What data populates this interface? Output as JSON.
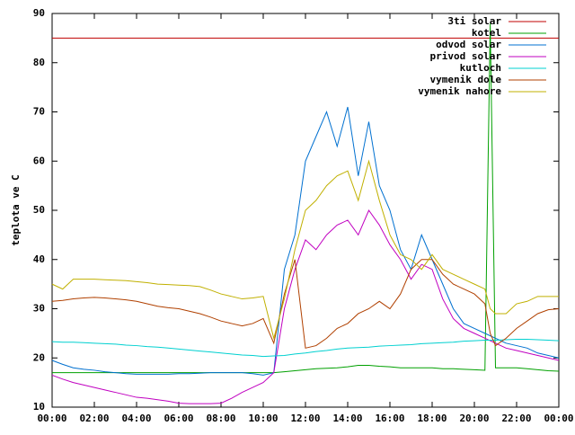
{
  "chart_data": {
    "type": "line",
    "y_label": "teplota ve C",
    "xlim": [
      0,
      24
    ],
    "ylim": [
      10,
      90
    ],
    "yticks": [
      10,
      20,
      30,
      40,
      50,
      60,
      70,
      80,
      90
    ],
    "xticks": [
      {
        "value": 0,
        "label": "00:00"
      },
      {
        "value": 2,
        "label": "02:00"
      },
      {
        "value": 4,
        "label": "04:00"
      },
      {
        "value": 6,
        "label": "06:00"
      },
      {
        "value": 8,
        "label": "08:00"
      },
      {
        "value": 10,
        "label": "10:00"
      },
      {
        "value": 12,
        "label": "12:00"
      },
      {
        "value": 14,
        "label": "14:00"
      },
      {
        "value": 16,
        "label": "16:00"
      },
      {
        "value": 18,
        "label": "18:00"
      },
      {
        "value": 20,
        "label": "20:00"
      },
      {
        "value": 22,
        "label": "22:00"
      },
      {
        "value": 24,
        "label": "00:00"
      }
    ],
    "legend": "top-right",
    "x": [
      0,
      0.5,
      1,
      1.5,
      2,
      2.5,
      3,
      3.5,
      4,
      4.5,
      5,
      5.5,
      6,
      6.5,
      7,
      7.5,
      8,
      8.5,
      9,
      9.5,
      10,
      10.5,
      11,
      11.5,
      12,
      12.5,
      13,
      13.5,
      14,
      14.5,
      15,
      15.5,
      16,
      16.5,
      17,
      17.5,
      18,
      18.5,
      19,
      19.5,
      20,
      20.5,
      20.75,
      21,
      21.5,
      22,
      22.5,
      23,
      23.5,
      24
    ],
    "series": [
      {
        "name": "3ti solar",
        "color": "#c00000",
        "values": [
          85,
          85,
          85,
          85,
          85,
          85,
          85,
          85,
          85,
          85,
          85,
          85,
          85,
          85,
          85,
          85,
          85,
          85,
          85,
          85,
          85,
          85,
          85,
          85,
          85,
          85,
          85,
          85,
          85,
          85,
          85,
          85,
          85,
          85,
          85,
          85,
          85,
          85,
          85,
          85,
          85,
          85,
          85,
          85,
          85,
          85,
          85,
          85,
          85,
          85
        ]
      },
      {
        "name": "kotel",
        "color": "#00a000",
        "values": [
          17,
          17,
          17,
          17,
          17,
          17,
          17,
          17,
          17,
          17,
          17,
          17,
          17,
          17,
          17,
          17,
          17,
          17,
          17,
          17,
          17,
          17,
          17.2,
          17.4,
          17.6,
          17.8,
          17.9,
          18,
          18.2,
          18.5,
          18.5,
          18.3,
          18.2,
          18,
          18,
          18,
          18,
          17.8,
          17.8,
          17.7,
          17.6,
          17.5,
          88,
          18,
          18,
          18,
          17.8,
          17.6,
          17.4,
          17.3
        ]
      },
      {
        "name": "odvod solar",
        "color": "#0070d0",
        "values": [
          19.5,
          18.7,
          18,
          17.7,
          17.5,
          17.2,
          17,
          16.8,
          16.7,
          16.7,
          16.7,
          16.7,
          16.8,
          16.8,
          16.9,
          17,
          17,
          17,
          17,
          16.8,
          16.5,
          17,
          38,
          45,
          60,
          65,
          70,
          63,
          71,
          57,
          68,
          55,
          50,
          42,
          38,
          45,
          40,
          35,
          30,
          27,
          26,
          25,
          24.5,
          24,
          23,
          22.5,
          22,
          21,
          20.5,
          20
        ]
      },
      {
        "name": "privod solar",
        "color": "#c000c0",
        "values": [
          16.5,
          15.7,
          15,
          14.5,
          14,
          13.5,
          13,
          12.5,
          12,
          11.8,
          11.5,
          11.2,
          10.8,
          10.7,
          10.7,
          10.7,
          10.8,
          11.8,
          13,
          14,
          15,
          17,
          30,
          38,
          44,
          42,
          45,
          47,
          48,
          45,
          50,
          47,
          43,
          40,
          36,
          39,
          38,
          32,
          28,
          26,
          25,
          24,
          23.5,
          23,
          22,
          21.5,
          21,
          20.5,
          20,
          19.5
        ]
      },
      {
        "name": "kutloch",
        "color": "#00d0d0",
        "values": [
          23.3,
          23.2,
          23.2,
          23.1,
          23,
          22.9,
          22.8,
          22.6,
          22.5,
          22.3,
          22.2,
          22,
          21.8,
          21.6,
          21.4,
          21.2,
          21,
          20.8,
          20.6,
          20.5,
          20.3,
          20.4,
          20.5,
          20.8,
          21,
          21.3,
          21.5,
          21.8,
          22,
          22.1,
          22.2,
          22.4,
          22.5,
          22.6,
          22.7,
          22.9,
          23,
          23.1,
          23.2,
          23.4,
          23.5,
          23.6,
          23.6,
          23.6,
          23.7,
          23.8,
          23.8,
          23.7,
          23.6,
          23.5
        ]
      },
      {
        "name": "vymenik dole",
        "color": "#b04000",
        "values": [
          31.5,
          31.7,
          32,
          32.2,
          32.3,
          32.2,
          32,
          31.8,
          31.5,
          31,
          30.5,
          30.2,
          30,
          29.5,
          29,
          28.3,
          27.5,
          27,
          26.5,
          27,
          28,
          23,
          33,
          40,
          22,
          22.5,
          24,
          26,
          27,
          29,
          30,
          31.5,
          30,
          33,
          38,
          40,
          40,
          37,
          35,
          34,
          33,
          31,
          25,
          22.5,
          24,
          26,
          27.5,
          29,
          29.8,
          30
        ]
      },
      {
        "name": "vymenik nahore",
        "color": "#c0b000",
        "values": [
          35,
          34,
          36,
          36,
          36,
          35.9,
          35.8,
          35.7,
          35.5,
          35.3,
          35,
          34.9,
          34.8,
          34.7,
          34.5,
          33.8,
          33,
          32.5,
          32,
          32.2,
          32.5,
          24,
          32,
          42,
          50,
          52,
          55,
          57,
          58,
          52,
          60,
          52,
          45,
          41,
          40,
          38,
          41,
          38,
          37,
          36,
          35,
          34,
          30,
          29,
          29,
          31,
          31.5,
          32.5,
          32.5,
          32.5
        ]
      }
    ]
  }
}
